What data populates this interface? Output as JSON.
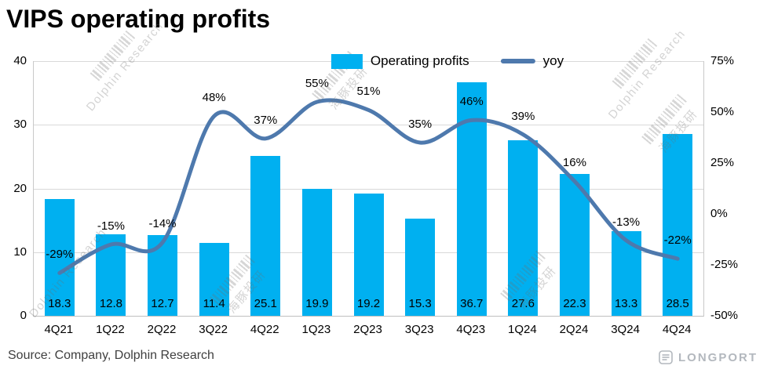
{
  "title": "VIPS operating profits",
  "source": "Source: Company, Dolphin Research",
  "brand": "LONGPORT",
  "watermark": {
    "en": "Dolphin Research",
    "cn": "海豚投研"
  },
  "chart_data": {
    "type": "bar+line",
    "title": "VIPS operating profits",
    "categories": [
      "4Q21",
      "1Q22",
      "2Q22",
      "3Q22",
      "4Q22",
      "1Q23",
      "2Q23",
      "3Q23",
      "4Q23",
      "1Q24",
      "2Q24",
      "3Q24",
      "4Q24"
    ],
    "series": [
      {
        "name": "Operating profits",
        "type": "bar",
        "axis": "left",
        "color": "#00b0f0",
        "values": [
          18.3,
          12.8,
          12.7,
          11.4,
          25.1,
          19.9,
          19.2,
          15.3,
          36.7,
          27.6,
          22.3,
          13.3,
          28.5
        ],
        "labels": [
          "18.3",
          "12.8",
          "12.7",
          "11.4",
          "25.1",
          "19.9",
          "19.2",
          "15.3",
          "36.7",
          "27.6",
          "22.3",
          "13.3",
          "28.5"
        ]
      },
      {
        "name": "yoy",
        "type": "line",
        "axis": "right",
        "color": "#4e79ad",
        "values": [
          -29,
          -15,
          -14,
          48,
          37,
          55,
          51,
          35,
          46,
          39,
          16,
          -13,
          -22
        ],
        "labels": [
          "-29%",
          "-15%",
          "-14%",
          "48%",
          "37%",
          "55%",
          "51%",
          "35%",
          "46%",
          "39%",
          "16%",
          "-13%",
          "-22%"
        ]
      }
    ],
    "left_axis": {
      "min": 0,
      "max": 40,
      "ticks": [
        0,
        10,
        20,
        30,
        40
      ]
    },
    "right_axis": {
      "min": -50,
      "max": 75,
      "ticks": [
        -50,
        -25,
        0,
        25,
        50,
        75
      ],
      "tick_labels": [
        "-50%",
        "-25%",
        "0%",
        "25%",
        "50%",
        "75%"
      ]
    },
    "legend_position": "top",
    "grid": true
  }
}
